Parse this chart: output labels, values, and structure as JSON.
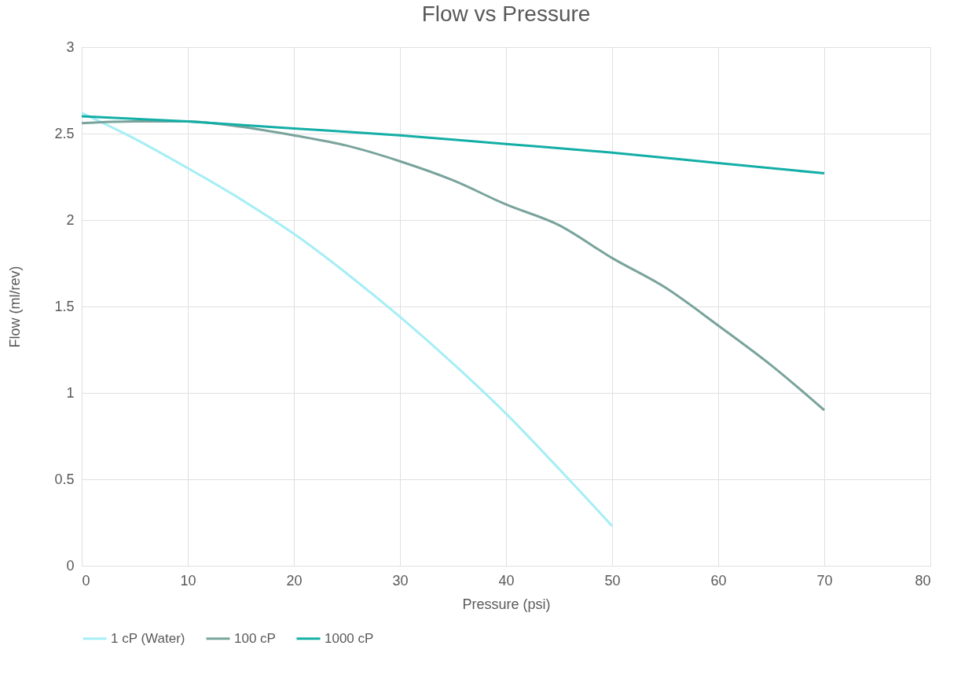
{
  "chart_data": {
    "type": "line",
    "title": "Flow vs Pressure",
    "xlabel": "Pressure (psi)",
    "ylabel": "Flow (ml/rev)",
    "xlim": [
      0,
      80
    ],
    "xticks": [
      0,
      10,
      20,
      30,
      40,
      50,
      60,
      70,
      80
    ],
    "ylim": [
      0,
      3
    ],
    "yticks": [
      0,
      0.5,
      1,
      1.5,
      2,
      2.5,
      3
    ],
    "grid": true,
    "legend": "bottom",
    "marker": "none",
    "line_style": "solid",
    "series": [
      {
        "name": "1 cP (Water)",
        "color": "#a6eef5",
        "x": [
          0,
          5,
          10,
          15,
          20,
          25,
          30,
          35,
          40,
          45,
          50
        ],
        "values": [
          2.62,
          2.47,
          2.3,
          2.12,
          1.92,
          1.69,
          1.44,
          1.17,
          0.88,
          0.56,
          0.23
        ]
      },
      {
        "name": "100 cP",
        "color": "#79a39c",
        "x": [
          0,
          5,
          10,
          15,
          20,
          25,
          30,
          35,
          40,
          45,
          50,
          55,
          60,
          65,
          70
        ],
        "values": [
          2.56,
          2.57,
          2.57,
          2.54,
          2.49,
          2.43,
          2.34,
          2.23,
          2.09,
          1.97,
          1.78,
          1.61,
          1.39,
          1.16,
          0.9
        ]
      },
      {
        "name": "1000 cP",
        "color": "#13aea6",
        "x": [
          0,
          10,
          20,
          30,
          40,
          50,
          60,
          70
        ],
        "values": [
          2.6,
          2.57,
          2.53,
          2.49,
          2.44,
          2.39,
          2.33,
          2.27
        ]
      }
    ]
  }
}
